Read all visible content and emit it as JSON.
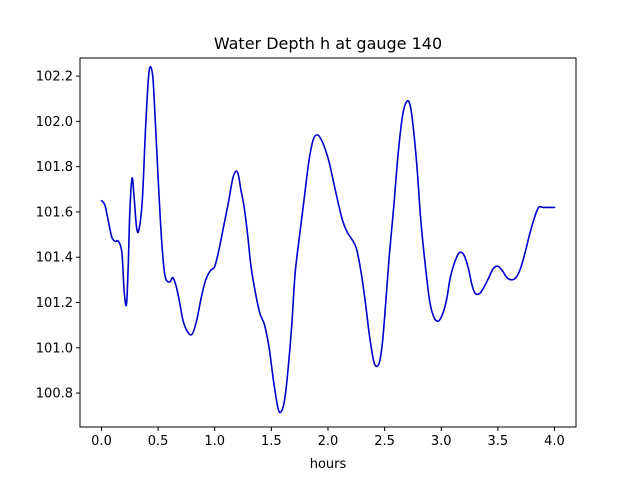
{
  "chart_data": {
    "type": "line",
    "title": "Water Depth h at gauge 140",
    "xlabel": "hours",
    "ylabel": "",
    "xlim": [
      -0.19,
      4.19
    ],
    "ylim": [
      100.65,
      102.28
    ],
    "xticks": [
      0.0,
      0.5,
      1.0,
      1.5,
      2.0,
      2.5,
      3.0,
      3.5,
      4.0
    ],
    "xtick_labels": [
      "0.0",
      "0.5",
      "1.0",
      "1.5",
      "2.0",
      "2.5",
      "3.0",
      "3.5",
      "4.0"
    ],
    "yticks": [
      100.8,
      101.0,
      101.2,
      101.4,
      101.6,
      101.8,
      102.0,
      102.2
    ],
    "ytick_labels": [
      "100.8",
      "101.0",
      "101.2",
      "101.4",
      "101.6",
      "101.8",
      "102.0",
      "102.2"
    ],
    "grid": false,
    "series": [
      {
        "color": "#0000cc",
        "x": [
          0.0,
          0.03,
          0.06,
          0.09,
          0.12,
          0.15,
          0.18,
          0.2,
          0.22,
          0.235,
          0.25,
          0.27,
          0.29,
          0.31,
          0.33,
          0.36,
          0.39,
          0.42,
          0.45,
          0.47,
          0.5,
          0.53,
          0.56,
          0.6,
          0.63,
          0.66,
          0.69,
          0.72,
          0.76,
          0.8,
          0.84,
          0.88,
          0.92,
          0.96,
          1.0,
          1.04,
          1.08,
          1.12,
          1.16,
          1.19,
          1.21,
          1.23,
          1.26,
          1.29,
          1.32,
          1.36,
          1.4,
          1.44,
          1.48,
          1.52,
          1.56,
          1.59,
          1.62,
          1.65,
          1.68,
          1.71,
          1.75,
          1.79,
          1.83,
          1.87,
          1.91,
          1.95,
          1.98,
          2.01,
          2.05,
          2.09,
          2.13,
          2.17,
          2.21,
          2.25,
          2.29,
          2.33,
          2.37,
          2.41,
          2.45,
          2.48,
          2.51,
          2.54,
          2.58,
          2.62,
          2.66,
          2.7,
          2.73,
          2.76,
          2.79,
          2.82,
          2.86,
          2.9,
          2.94,
          2.98,
          3.02,
          3.05,
          3.08,
          3.12,
          3.16,
          3.2,
          3.24,
          3.27,
          3.3,
          3.34,
          3.38,
          3.42,
          3.46,
          3.5,
          3.54,
          3.58,
          3.62,
          3.66,
          3.7,
          3.74,
          3.78,
          3.82,
          3.86,
          3.9,
          3.94,
          3.98,
          4.0
        ],
        "y": [
          101.65,
          101.63,
          101.56,
          101.49,
          101.47,
          101.47,
          101.42,
          101.25,
          101.19,
          101.35,
          101.6,
          101.75,
          101.65,
          101.53,
          101.52,
          101.65,
          101.98,
          102.22,
          102.21,
          102.05,
          101.75,
          101.48,
          101.32,
          101.29,
          101.31,
          101.27,
          101.2,
          101.12,
          101.07,
          101.06,
          101.12,
          101.22,
          101.3,
          101.34,
          101.36,
          101.44,
          101.54,
          101.64,
          101.75,
          101.78,
          101.76,
          101.7,
          101.62,
          101.5,
          101.36,
          101.24,
          101.15,
          101.1,
          101.0,
          100.85,
          100.73,
          100.72,
          100.78,
          100.92,
          101.1,
          101.33,
          101.5,
          101.66,
          101.82,
          101.92,
          101.94,
          101.91,
          101.87,
          101.82,
          101.73,
          101.64,
          101.56,
          101.51,
          101.48,
          101.44,
          101.34,
          101.2,
          101.04,
          100.93,
          100.93,
          101.02,
          101.2,
          101.4,
          101.62,
          101.86,
          102.03,
          102.09,
          102.06,
          101.94,
          101.77,
          101.56,
          101.36,
          101.2,
          101.13,
          101.12,
          101.16,
          101.22,
          101.31,
          101.38,
          101.42,
          101.41,
          101.35,
          101.28,
          101.24,
          101.24,
          101.27,
          101.31,
          101.35,
          101.36,
          101.34,
          101.31,
          101.3,
          101.31,
          101.35,
          101.42,
          101.5,
          101.57,
          101.62,
          101.62,
          101.62,
          101.62,
          101.62
        ]
      }
    ]
  }
}
